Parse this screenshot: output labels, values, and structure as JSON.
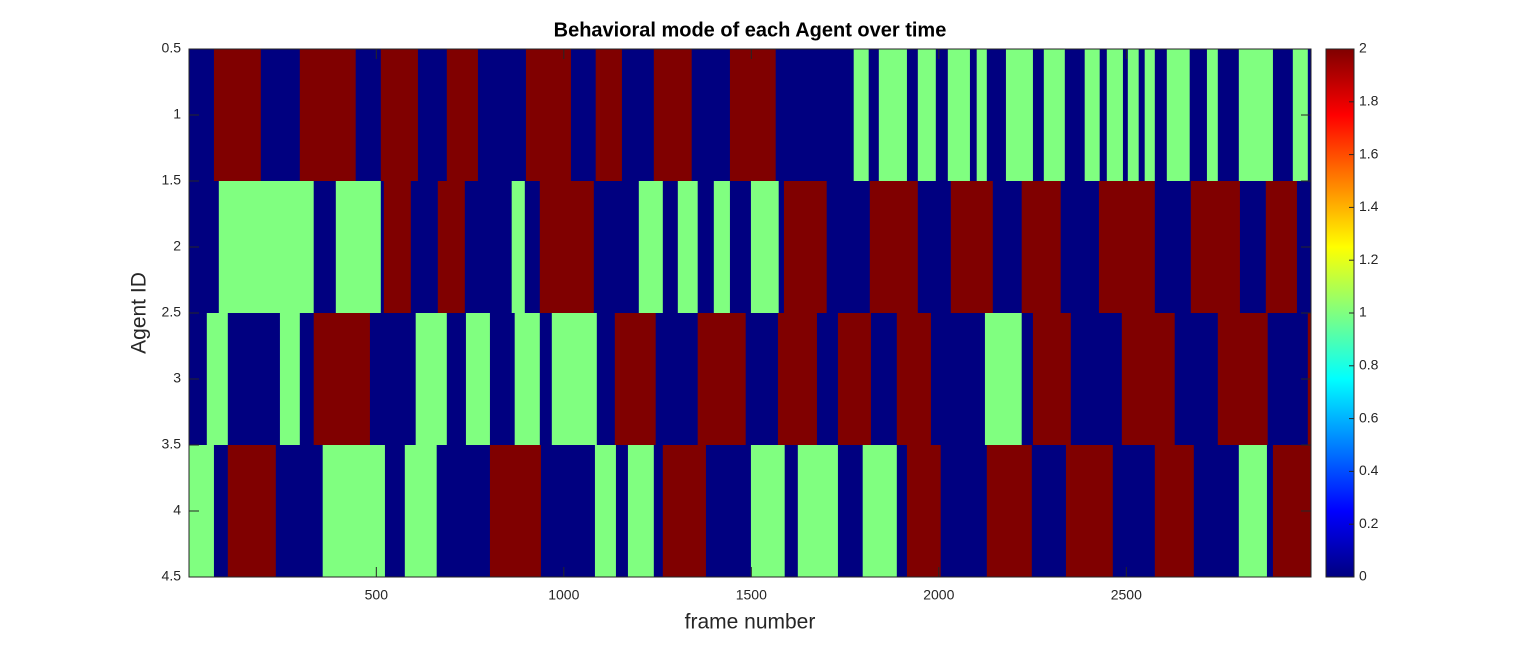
{
  "chart_data": {
    "type": "heatmap",
    "title": "Behavioral mode of each Agent over time",
    "xlabel": "frame number",
    "ylabel": "Agent ID",
    "colormap": "jet",
    "xlim": [
      0.5,
      2992.5
    ],
    "xticks": [
      500,
      1000,
      1500,
      2000,
      2500
    ],
    "ylim": [
      0.5,
      4.5
    ],
    "yticks": [
      0.5,
      1,
      1.5,
      2,
      2.5,
      3,
      3.5,
      4,
      4.5
    ],
    "clim": [
      0,
      2
    ],
    "cticks": [
      0,
      0.2,
      0.4,
      0.6,
      0.8,
      1,
      1.2,
      1.4,
      1.6,
      1.8,
      2
    ],
    "rows": [
      {
        "id": 1,
        "edges": [
          0.5,
          67,
          192,
          296,
          445,
          512,
          611,
          688,
          771,
          899,
          1019,
          1085,
          1155,
          1240,
          1341,
          1443,
          1565,
          1773,
          1813,
          1840,
          1915,
          1944,
          1992,
          2024,
          2083,
          2101,
          2128,
          2179,
          2251,
          2280,
          2336,
          2389,
          2429,
          2448,
          2491,
          2504,
          2533,
          2549,
          2576,
          2608,
          2669,
          2715,
          2744,
          2800,
          2891,
          2944,
          2984,
          2992.5
        ],
        "modes": [
          0,
          2,
          0,
          2,
          0,
          2,
          0,
          2,
          0,
          2,
          0,
          2,
          0,
          2,
          0,
          2,
          0,
          1,
          0,
          1,
          0,
          1,
          0,
          1,
          0,
          1,
          0,
          1,
          0,
          1,
          0,
          1,
          0,
          1,
          0,
          1,
          0,
          1,
          0,
          1,
          0,
          1,
          0,
          1,
          0,
          1,
          0
        ]
      },
      {
        "id": 2,
        "edges": [
          0.5,
          80,
          333,
          392,
          512,
          520,
          592,
          664,
          736,
          861,
          896,
          936,
          1080,
          1200,
          1264,
          1304,
          1357,
          1400,
          1443,
          1499,
          1573,
          1587,
          1701,
          1816,
          1944,
          2032,
          2144,
          2221,
          2325,
          2427,
          2576,
          2672,
          2803,
          2872,
          2955,
          2992.5
        ],
        "modes": [
          0,
          1,
          0,
          1,
          0,
          2,
          0,
          2,
          0,
          1,
          0,
          2,
          0,
          1,
          0,
          1,
          0,
          1,
          0,
          1,
          0,
          2,
          0,
          2,
          0,
          2,
          0,
          2,
          0,
          2,
          0,
          2,
          0,
          2,
          0
        ]
      },
      {
        "id": 3,
        "edges": [
          0.5,
          48,
          104,
          243,
          296,
          333,
          483,
          605,
          688,
          739,
          803,
          869,
          936,
          968,
          1088,
          1136,
          1245,
          1357,
          1485,
          1571,
          1675,
          1731,
          1819,
          1888,
          1979,
          2123,
          2221,
          2251,
          2352,
          2488,
          2629,
          2744,
          2877,
          2984,
          2992.5
        ],
        "modes": [
          0,
          1,
          0,
          1,
          0,
          2,
          0,
          1,
          0,
          1,
          0,
          1,
          0,
          1,
          0,
          2,
          0,
          2,
          0,
          2,
          0,
          2,
          0,
          2,
          0,
          1,
          0,
          2,
          0,
          2,
          0,
          2,
          0,
          2
        ]
      },
      {
        "id": 4,
        "edges": [
          0.5,
          67,
          104,
          232,
          357,
          523,
          576,
          661,
          803,
          939,
          1083,
          1139,
          1171,
          1240,
          1264,
          1379,
          1499,
          1589,
          1624,
          1731,
          1797,
          1888,
          1915,
          2005,
          2128,
          2248,
          2339,
          2464,
          2576,
          2680,
          2800,
          2875,
          2891,
          2992.5
        ],
        "modes": [
          1,
          0,
          2,
          0,
          1,
          0,
          1,
          0,
          2,
          0,
          1,
          0,
          1,
          0,
          2,
          0,
          1,
          0,
          1,
          0,
          1,
          0,
          2,
          0,
          2,
          0,
          2,
          0,
          2,
          0,
          1,
          0,
          2
        ]
      }
    ]
  }
}
